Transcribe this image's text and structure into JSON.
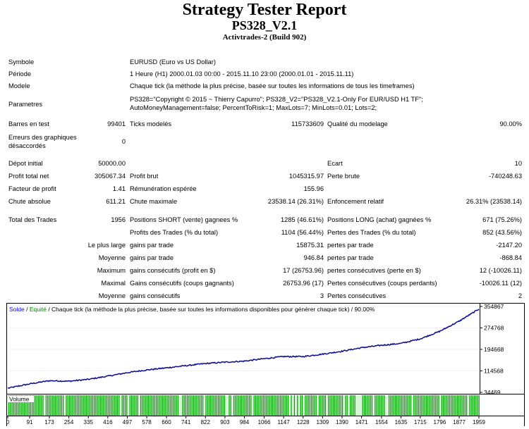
{
  "header": {
    "title": "Strategy Tester Report",
    "subtitle": "PS328_V2.1",
    "server": "Activtrades-2 (Build 902)"
  },
  "info": {
    "symbole_label": "Symbole",
    "symbole_value": "EURUSD (Euro vs US Dollar)",
    "periode_label": "Période",
    "periode_value": "1 Heure (H1) 2000.01.03 00:00 - 2015.11.10 23:00 (2000.01.01 - 2015.11.11)",
    "modele_label": "Modele",
    "modele_value": "Chaque tick (la méthode la plus précise, basée sur toutes les informations de tous les timeframes)",
    "parametres_label": "Parametres",
    "parametres_line1": "PS328=\"Copyright © 2015 ~ Thierry Capurro\"; PS328_V2=\"PS328_V2.1-Only For EUR/USD H1 TF\";",
    "parametres_line2": "AutoMoneyManagement=false; PercentToRisk=1; MaxLots=7; MinLots=0.01; Lots=2;"
  },
  "stats": {
    "barres_label": "Barres en test",
    "barres_value": "99401",
    "ticks_label": "Ticks modelés",
    "ticks_value": "115733609",
    "qualite_label": "Qualité du modelage",
    "qualite_value": "90.00%",
    "erreurs_label_1": "Erreurs des graphiques",
    "erreurs_label_2": "désaccordés",
    "erreurs_value": "0",
    "depot_label": "Dépot initial",
    "depot_value": "50000.00",
    "ecart_label": "Ecart",
    "ecart_value": "10",
    "profit_net_label": "Profit total net",
    "profit_net_value": "305067.34",
    "profit_brut_label": "Profit brut",
    "profit_brut_value": "1045315.97",
    "perte_brute_label": "Perte brute",
    "perte_brute_value": "-740248.63",
    "facteur_label": "Facteur de profit",
    "facteur_value": "1.41",
    "remuneration_label": "Rémunération espérée",
    "remuneration_value": "155.96",
    "chute_abs_label": "Chute absolue",
    "chute_abs_value": "611.21",
    "chute_max_label": "Chute maximale",
    "chute_max_value": "23538.14 (26.31%)",
    "enfoncement_label": "Enfoncement relatif",
    "enfoncement_value": "26.31% (23538.14)",
    "total_trades_label": "Total des Trades",
    "total_trades_value": "1956",
    "short_label": "Positions SHORT (vente) gagnees %",
    "short_value": "1285 (46.61%)",
    "long_label": "Positions LONG (achat) gagnées %",
    "long_value": "671 (75.26%)",
    "profits_trades_label": "Profits des Trades (% du total)",
    "profits_trades_value": "1104 (56.44%)",
    "pertes_trades_label": "Pertes des Trades (% du total)",
    "pertes_trades_value": "852 (43.56%)",
    "plus_large_label": "Le plus large",
    "gains_trade_label": "gains par trade",
    "gains_trade_value": "15875.31",
    "pertes_trade_label": "pertes par trade",
    "pertes_trade_value": "-2147.20",
    "moyenne_label": "Moyenne",
    "gains_trade_moy_label": "gains par trade",
    "gains_trade_moy_value": "946.84",
    "pertes_trade_moy_label": "pertes par trade",
    "pertes_trade_moy_value": "-868.84",
    "maximum_label": "Maximum",
    "gains_consec_label": "gains consécutifs (profit en $)",
    "gains_consec_value": "17 (26753.96)",
    "pertes_consec_label": "pertes consécutives (perte en $)",
    "pertes_consec_value": "12 (-10026.11)",
    "maximal_label": "Maximal",
    "gains_coups_label": "Gains consécutifs (coups gagnants)",
    "gains_coups_value": "26753.96 (17)",
    "pertes_coups_label": "Pertes consécutives (coups perdants)",
    "pertes_coups_value": "-10026.11 (12)",
    "moyenne2_label": "Moyenne",
    "gains_consec2_label": "gains consécutifs",
    "gains_consec2_value": "3",
    "pertes_consec2_label": "Pertes consécutives",
    "pertes_consec2_value": "2"
  },
  "chart_legend": {
    "solde": "Solde",
    "slash1": " / ",
    "equite": "Equité",
    "rest": " / Chaque tick (la méthode la plus précise, basée sur toutes les informations disponibles pour générer chaque tick) / 90.00%"
  },
  "volume_label": "Volume",
  "colors": {
    "balance_line": "#0a0a8c",
    "volume_bars": "#00a000",
    "legend_blue": "#0000ff",
    "legend_green": "#008000",
    "volume_bg": "#d6f7d6"
  },
  "chart_data": {
    "type": "line",
    "series": [
      {
        "name": "Solde",
        "x": [
          0,
          91,
          173,
          254,
          335,
          416,
          497,
          578,
          660,
          741,
          822,
          903,
          984,
          1066,
          1147,
          1228,
          1309,
          1390,
          1471,
          1554,
          1635,
          1715,
          1796,
          1877,
          1959
        ],
        "values": [
          50000,
          66000,
          78000,
          76000,
          83000,
          95000,
          108000,
          118000,
          126000,
          134000,
          142000,
          147000,
          151000,
          160000,
          168000,
          168000,
          177000,
          188000,
          201000,
          210000,
          217000,
          234000,
          262000,
          300000,
          345000
        ]
      }
    ],
    "yticks": [
      "354867",
      "274768",
      "194668",
      "114568",
      "34469"
    ],
    "xticks": [
      "0",
      "91",
      "173",
      "254",
      "335",
      "416",
      "497",
      "578",
      "660",
      "741",
      "822",
      "903",
      "984",
      "1066",
      "1147",
      "1228",
      "1309",
      "1390",
      "1471",
      "1554",
      "1635",
      "1715",
      "1796",
      "1877",
      "1959"
    ],
    "ylim": [
      34469,
      354867
    ],
    "xlim": [
      0,
      1959
    ],
    "grid": true
  }
}
